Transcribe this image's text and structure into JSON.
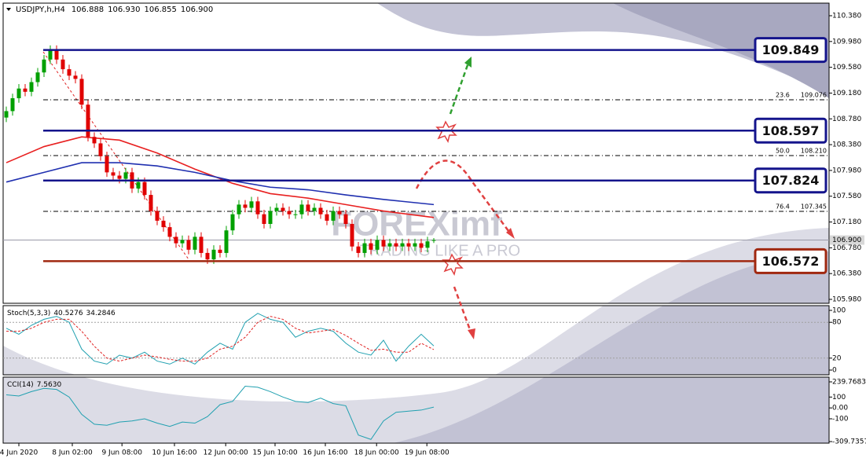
{
  "header": {
    "symbol": "USDJPY,h,H4",
    "ohlc_labels": [
      "106.888",
      "106.930",
      "106.855",
      "106.900"
    ]
  },
  "watermark": {
    "brand": "FOREXimf",
    "slogan": "TRADING LIKE A PRO"
  },
  "chart_data": [
    {
      "type": "candlestick",
      "xlim": [
        -0.5,
        130.875
      ],
      "ylim": [
        105.919,
        110.575
      ],
      "yticks": [
        {
          "value": 110.38,
          "label": "110.380"
        },
        {
          "value": 109.98,
          "label": "109.980"
        },
        {
          "value": 109.58,
          "label": "109.580"
        },
        {
          "value": 109.18,
          "label": "109.180"
        },
        {
          "value": 108.78,
          "label": "108.780"
        },
        {
          "value": 108.38,
          "label": "108.380"
        },
        {
          "value": 107.98,
          "label": "107.980"
        },
        {
          "value": 107.58,
          "label": "107.580"
        },
        {
          "value": 107.18,
          "label": "107.180"
        },
        {
          "value": 106.78,
          "label": "106.780"
        },
        {
          "value": 106.38,
          "label": "106.380"
        },
        {
          "value": 105.98,
          "label": "105.980"
        }
      ],
      "up_color": "#00a000",
      "down_color": "#e00000",
      "open": [
        108.8,
        108.9,
        109.1,
        109.25,
        109.2,
        109.35,
        109.5,
        109.7,
        109.85,
        109.7,
        109.55,
        109.45,
        109.4,
        109.0,
        108.5,
        108.4,
        108.2,
        107.95,
        107.9,
        107.85,
        107.95,
        107.7,
        107.8,
        107.6,
        107.35,
        107.2,
        107.1,
        106.95,
        106.85,
        106.9,
        106.75,
        106.95,
        106.7,
        106.6,
        106.75,
        106.7,
        107.05,
        107.3,
        107.45,
        107.4,
        107.5,
        107.3,
        107.15,
        107.35,
        107.4,
        107.35,
        107.3,
        107.3,
        107.45,
        107.35,
        107.4,
        107.3,
        107.2,
        107.35,
        107.3,
        107.15,
        106.8,
        106.7,
        106.85,
        106.75,
        106.9,
        106.8,
        106.85,
        106.8,
        106.85,
        106.8,
        106.85,
        106.78,
        106.888
      ],
      "high": [
        108.97,
        109.17,
        109.32,
        109.32,
        109.42,
        109.57,
        109.77,
        109.92,
        109.92,
        109.77,
        109.62,
        109.52,
        109.47,
        109.07,
        108.57,
        108.47,
        108.27,
        108.02,
        107.97,
        108.02,
        108.02,
        107.87,
        107.87,
        107.67,
        107.42,
        107.27,
        107.17,
        107.02,
        106.97,
        106.97,
        107.02,
        107.02,
        106.77,
        106.82,
        106.82,
        107.12,
        107.37,
        107.52,
        107.52,
        107.57,
        107.57,
        107.37,
        107.42,
        107.47,
        107.47,
        107.42,
        107.37,
        107.52,
        107.52,
        107.47,
        107.47,
        107.37,
        107.42,
        107.42,
        107.37,
        107.22,
        106.87,
        106.92,
        106.92,
        106.97,
        106.97,
        106.92,
        106.92,
        106.92,
        106.92,
        106.92,
        106.92,
        106.95,
        106.93
      ],
      "low": [
        108.73,
        108.83,
        109.03,
        109.13,
        109.13,
        109.28,
        109.43,
        109.63,
        109.63,
        109.48,
        109.38,
        109.33,
        108.93,
        108.43,
        108.33,
        108.13,
        107.88,
        107.83,
        107.78,
        107.78,
        107.63,
        107.63,
        107.53,
        107.28,
        107.13,
        107.03,
        106.88,
        106.78,
        106.78,
        106.68,
        106.68,
        106.63,
        106.53,
        106.53,
        106.63,
        106.63,
        106.98,
        107.23,
        107.33,
        107.33,
        107.23,
        107.08,
        107.08,
        107.28,
        107.28,
        107.23,
        107.23,
        107.23,
        107.28,
        107.28,
        107.23,
        107.13,
        107.13,
        107.23,
        107.08,
        106.73,
        106.63,
        106.63,
        106.68,
        106.68,
        106.73,
        106.73,
        106.73,
        106.73,
        106.73,
        106.73,
        106.71,
        106.71,
        106.855
      ],
      "close": [
        108.9,
        109.1,
        109.25,
        109.2,
        109.35,
        109.5,
        109.7,
        109.85,
        109.7,
        109.55,
        109.45,
        109.4,
        109.0,
        108.5,
        108.4,
        108.2,
        107.95,
        107.9,
        107.85,
        107.95,
        107.7,
        107.8,
        107.6,
        107.35,
        107.2,
        107.1,
        106.95,
        106.85,
        106.9,
        106.75,
        106.95,
        106.7,
        106.6,
        106.75,
        106.7,
        107.05,
        107.3,
        107.45,
        107.4,
        107.5,
        107.3,
        107.15,
        107.35,
        107.4,
        107.35,
        107.3,
        107.3,
        107.45,
        107.35,
        107.4,
        107.3,
        107.2,
        107.35,
        107.3,
        107.15,
        106.8,
        106.7,
        106.85,
        106.75,
        106.9,
        106.8,
        106.85,
        106.8,
        106.85,
        106.8,
        106.85,
        106.78,
        106.88,
        106.9
      ],
      "moving_averages": [
        {
          "color": "#e82020",
          "x": [
            0,
            6,
            12,
            18,
            24,
            30,
            36,
            42,
            48,
            54,
            60,
            68
          ],
          "values": [
            108.1,
            108.35,
            108.5,
            108.45,
            108.25,
            108.0,
            107.78,
            107.62,
            107.55,
            107.45,
            107.35,
            107.25
          ]
        },
        {
          "color": "#2030b0",
          "x": [
            0,
            6,
            12,
            18,
            24,
            30,
            36,
            42,
            48,
            54,
            60,
            68
          ],
          "values": [
            107.8,
            107.95,
            108.1,
            108.1,
            108.05,
            107.95,
            107.82,
            107.72,
            107.68,
            107.6,
            107.53,
            107.45
          ]
        }
      ],
      "levels": [
        {
          "value": 109.849,
          "color": "#14148c"
        },
        {
          "value": 108.597,
          "color": "#14148c"
        },
        {
          "value": 107.824,
          "color": "#14148c"
        },
        {
          "value": 106.572,
          "color": "#a02810"
        }
      ],
      "fib_levels": [
        {
          "ratio": "23.6",
          "price": 109.076
        },
        {
          "ratio": "50.0",
          "price": {
            "value": 108.21,
            "label": "108.210"
          }
        },
        {
          "ratio": "76.4",
          "price": 107.345
        }
      ]
    },
    {
      "type": "line",
      "title": "Stoch(5,3,3)",
      "xlim": [
        -0.5,
        130.875
      ],
      "ylim": [
        -7.9,
        107.9
      ],
      "yticks": [
        100,
        80,
        20,
        0
      ],
      "levels": [
        80,
        20
      ],
      "x": [
        0,
        2,
        4,
        6,
        8,
        10,
        12,
        14,
        16,
        18,
        20,
        22,
        24,
        26,
        28,
        30,
        32,
        34,
        36,
        38,
        40,
        42,
        44,
        46,
        48,
        50,
        52,
        54,
        56,
        58,
        60,
        62,
        64,
        66,
        68
      ],
      "series": [
        {
          "color": "#20a0b0",
          "values": [
            70,
            60,
            75,
            85,
            90,
            80,
            35,
            15,
            10,
            25,
            20,
            30,
            15,
            10,
            20,
            10,
            30,
            45,
            35,
            80,
            95,
            85,
            80,
            55,
            65,
            70,
            65,
            45,
            30,
            25,
            50,
            15,
            40,
            60,
            40.5276
          ]
        },
        {
          "color": "#e02020",
          "dashed": true,
          "values": [
            65,
            65,
            70,
            80,
            85,
            85,
            65,
            40,
            20,
            15,
            20,
            25,
            22,
            18,
            15,
            15,
            20,
            35,
            40,
            55,
            80,
            90,
            85,
            70,
            62,
            65,
            68,
            58,
            45,
            33,
            35,
            30,
            30,
            45,
            34.2846
          ]
        }
      ]
    },
    {
      "type": "line",
      "title": "CCI(14)",
      "current_label": "7.5630",
      "xlim": [
        -0.5,
        130.875
      ],
      "ylim": [
        -324.2,
        283.1
      ],
      "yticks": [
        239.7683,
        100,
        {
          "value": 0,
          "label": "0.00"
        },
        -100,
        -309.7357
      ],
      "xticks": [
        {
          "value": 2,
          "label": "4 Jun 2020"
        },
        {
          "value": 10.5,
          "label": "8 Jun 02:00"
        },
        {
          "value": 18.4,
          "label": "9 Jun 08:00"
        },
        {
          "value": 26.75,
          "label": "10 Jun 16:00"
        },
        {
          "value": 34.9,
          "label": "12 Jun 00:00"
        },
        {
          "value": 42.75,
          "label": "15 Jun 10:00"
        },
        {
          "value": 50.75,
          "label": "16 Jun 16:00"
        },
        {
          "value": 58.9,
          "label": "18 Jun 00:00"
        },
        {
          "value": 66.9,
          "label": "19 Jun 08:00"
        }
      ],
      "x": [
        0,
        2,
        4,
        6,
        8,
        10,
        12,
        14,
        16,
        18,
        20,
        22,
        24,
        26,
        28,
        30,
        32,
        34,
        36,
        38,
        40,
        42,
        44,
        46,
        48,
        50,
        52,
        54,
        56,
        58,
        60,
        62,
        64,
        66,
        68
      ],
      "series": [
        {
          "color": "#20a0b0",
          "values": [
            120,
            110,
            150,
            180,
            170,
            100,
            -60,
            -150,
            -160,
            -130,
            -120,
            -100,
            -140,
            -170,
            -130,
            -140,
            -80,
            30,
            60,
            200,
            190,
            150,
            100,
            60,
            50,
            90,
            40,
            20,
            -250,
            -290,
            -120,
            -40,
            -30,
            -20,
            7.563
          ]
        }
      ]
    }
  ]
}
